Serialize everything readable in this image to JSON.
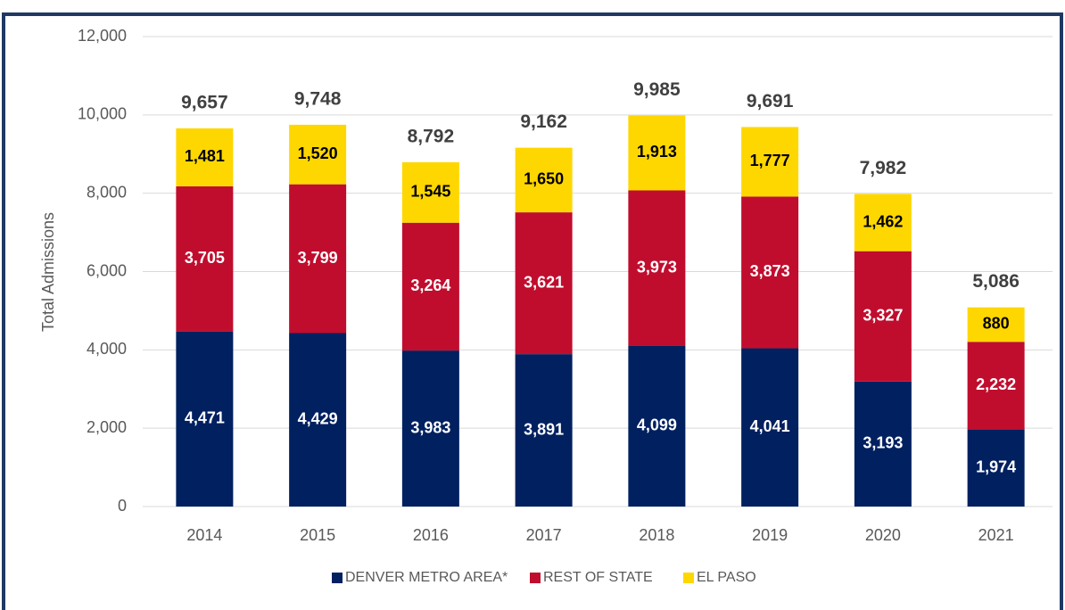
{
  "chart_data": {
    "type": "stacked_bar",
    "y_label": "Total Admissions",
    "categories": [
      "2014",
      "2015",
      "2016",
      "2017",
      "2018",
      "2019",
      "2020",
      "2021"
    ],
    "series": [
      {
        "name": "DENVER METRO AREA*",
        "color": "#002060",
        "label_color": "#ffffff",
        "values": [
          4471,
          4429,
          3983,
          3891,
          4099,
          4041,
          3193,
          1974
        ],
        "value_labels": [
          "4,471",
          "4,429",
          "3,983",
          "3,891",
          "4,099",
          "4,041",
          "3,193",
          "1,974"
        ]
      },
      {
        "name": "REST OF STATE",
        "color": "#c00d2e",
        "label_color": "#ffffff",
        "values": [
          3705,
          3799,
          3264,
          3621,
          3973,
          3873,
          3327,
          2232
        ],
        "value_labels": [
          "3,705",
          "3,799",
          "3,264",
          "3,621",
          "3,973",
          "3,873",
          "3,327",
          "2,232"
        ]
      },
      {
        "name": "EL PASO",
        "color": "#ffd700",
        "label_color": "#000000",
        "values": [
          1481,
          1520,
          1545,
          1650,
          1913,
          1777,
          1462,
          880
        ],
        "value_labels": [
          "1,481",
          "1,520",
          "1,545",
          "1,650",
          "1,913",
          "1,777",
          "1,462",
          "880"
        ]
      }
    ],
    "totals": [
      9657,
      9748,
      8792,
      9162,
      9985,
      9691,
      7982,
      5086
    ],
    "total_labels": [
      "9,657",
      "9,748",
      "8,792",
      "9,162",
      "9,985",
      "9,691",
      "7,982",
      "5,086"
    ],
    "ylim": [
      0,
      12000
    ],
    "yticks": [
      0,
      {
        "value": 2000,
        "label": "2,000"
      },
      {
        "value": 4000,
        "label": "4,000"
      },
      {
        "value": 6000,
        "label": "6,000"
      },
      {
        "value": 8000,
        "label": "8,000"
      },
      {
        "value": 10000,
        "label": "10,000"
      },
      {
        "value": 12000,
        "label": "12,000"
      }
    ],
    "grid": true,
    "legend": "bottom"
  }
}
